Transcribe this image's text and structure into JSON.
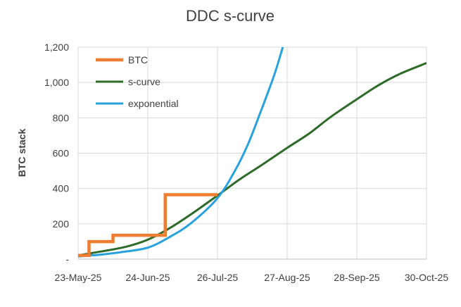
{
  "chart_data": {
    "type": "line",
    "title": "DDC s-curve",
    "xlabel": "",
    "ylabel": "BTC stack",
    "x_axis": {
      "type": "date",
      "range": [
        "2025-05-23",
        "2025-10-30"
      ],
      "tick_values": [
        "2025-05-23",
        "2025-06-24",
        "2025-07-26",
        "2025-08-27",
        "2025-09-28",
        "2025-10-30"
      ],
      "tick_labels": [
        "23-May-25",
        "24-Jun-25",
        "26-Jul-25",
        "27-Aug-25",
        "28-Sep-25",
        "30-Oct-25"
      ]
    },
    "y_axis": {
      "range": [
        0,
        1200
      ],
      "tick_values": [
        0,
        200,
        400,
        600,
        800,
        1000,
        1200
      ],
      "tick_labels": [
        "-",
        "200",
        "400",
        "600",
        "800",
        "1,000",
        "1,200"
      ]
    },
    "grid": true,
    "legend_position": "top-left",
    "series": [
      {
        "name": "BTC",
        "color": "#ed7d31",
        "step": true,
        "points": [
          [
            "2025-05-23",
            21
          ],
          [
            "2025-05-28",
            21
          ],
          [
            "2025-05-28",
            99
          ],
          [
            "2025-06-08",
            99
          ],
          [
            "2025-06-08",
            135
          ],
          [
            "2025-07-02",
            135
          ],
          [
            "2025-07-02",
            365
          ],
          [
            "2025-07-26",
            365
          ]
        ]
      },
      {
        "name": "s-curve",
        "color": "#2e6b2a",
        "points": [
          [
            "2025-05-23",
            21
          ],
          [
            "2025-06-02",
            42
          ],
          [
            "2025-06-14",
            70
          ],
          [
            "2025-06-24",
            110
          ],
          [
            "2025-07-04",
            175
          ],
          [
            "2025-07-14",
            255
          ],
          [
            "2025-07-26",
            360
          ],
          [
            "2025-08-05",
            450
          ],
          [
            "2025-08-15",
            530
          ],
          [
            "2025-08-27",
            630
          ],
          [
            "2025-09-06",
            710
          ],
          [
            "2025-09-16",
            805
          ],
          [
            "2025-09-28",
            905
          ],
          [
            "2025-10-08",
            985
          ],
          [
            "2025-10-18",
            1050
          ],
          [
            "2025-10-30",
            1110
          ]
        ]
      },
      {
        "name": "exponential",
        "color": "#27a2dc",
        "points": [
          [
            "2025-05-23",
            15
          ],
          [
            "2025-06-02",
            25
          ],
          [
            "2025-06-12",
            40
          ],
          [
            "2025-06-24",
            65
          ],
          [
            "2025-07-04",
            125
          ],
          [
            "2025-07-14",
            205
          ],
          [
            "2025-07-26",
            345
          ],
          [
            "2025-08-03",
            500
          ],
          [
            "2025-08-09",
            650
          ],
          [
            "2025-08-15",
            840
          ],
          [
            "2025-08-21",
            1040
          ],
          [
            "2025-08-25",
            1200
          ]
        ]
      }
    ]
  }
}
